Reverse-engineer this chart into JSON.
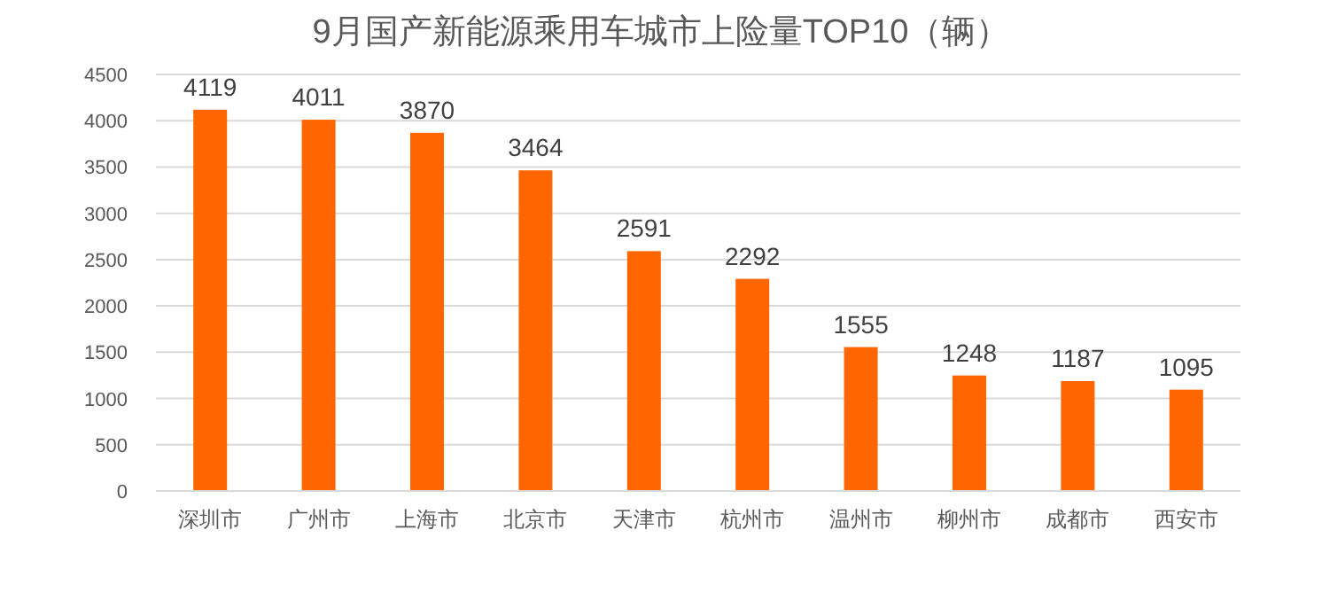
{
  "chart_data": {
    "type": "bar",
    "title": "9月国产新能源乘用车城市上险量TOP10（辆）",
    "categories": [
      "深圳市",
      "广州市",
      "上海市",
      "北京市",
      "天津市",
      "杭州市",
      "温州市",
      "柳州市",
      "成都市",
      "西安市"
    ],
    "values": [
      4119,
      4011,
      3870,
      3464,
      2591,
      2292,
      1555,
      1248,
      1187,
      1095
    ],
    "color": "#ff6600",
    "ylim": [
      0,
      4500
    ],
    "yticks": [
      0,
      500,
      1000,
      1500,
      2000,
      2500,
      3000,
      3500,
      4000,
      4500
    ],
    "grid": "y",
    "data_labels": true
  }
}
